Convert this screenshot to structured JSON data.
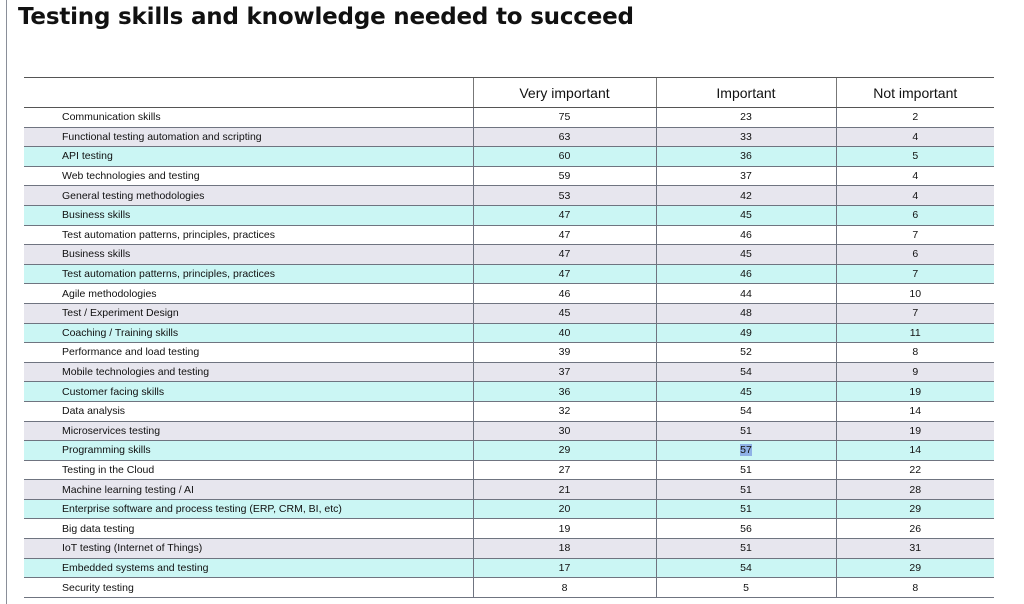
{
  "title": "Testing skills and knowledge needed to succeed",
  "columns": [
    "",
    "Very important",
    "Important",
    "Not important"
  ],
  "rows": [
    {
      "skill": "Communication skills",
      "very": "75",
      "important": "23",
      "not": "2",
      "shade": "white"
    },
    {
      "skill": "Functional testing automation and scripting",
      "very": "63",
      "important": "33",
      "not": "4",
      "shade": "gray"
    },
    {
      "skill": "API testing",
      "very": "60",
      "important": "36",
      "not": "5",
      "shade": "cyan"
    },
    {
      "skill": "Web technologies and testing",
      "very": "59",
      "important": "37",
      "not": "4",
      "shade": "white"
    },
    {
      "skill": "General testing methodologies",
      "very": "53",
      "important": "42",
      "not": "4",
      "shade": "gray"
    },
    {
      "skill": "Business skills",
      "very": "47",
      "important": "45",
      "not": "6",
      "shade": "cyan"
    },
    {
      "skill": "Test automation patterns, principles, practices",
      "very": "47",
      "important": "46",
      "not": "7",
      "shade": "white"
    },
    {
      "skill": "Business skills",
      "very": "47",
      "important": "45",
      "not": "6",
      "shade": "gray"
    },
    {
      "skill": "Test automation patterns, principles, practices",
      "very": "47",
      "important": "46",
      "not": "7",
      "shade": "cyan"
    },
    {
      "skill": "Agile methodologies",
      "very": "46",
      "important": "44",
      "not": "10",
      "shade": "white"
    },
    {
      "skill": "Test / Experiment Design",
      "very": "45",
      "important": "48",
      "not": "7",
      "shade": "gray"
    },
    {
      "skill": "Coaching / Training skills",
      "very": "40",
      "important": "49",
      "not": "11",
      "shade": "cyan"
    },
    {
      "skill": "Performance and load testing",
      "very": "39",
      "important": "52",
      "not": "8",
      "shade": "white"
    },
    {
      "skill": "Mobile technologies and testing",
      "very": "37",
      "important": "54",
      "not": "9",
      "shade": "gray"
    },
    {
      "skill": "Customer facing skills",
      "very": "36",
      "important": "45",
      "not": "19",
      "shade": "cyan"
    },
    {
      "skill": "Data analysis",
      "very": "32",
      "important": "54",
      "not": "14",
      "shade": "white"
    },
    {
      "skill": "Microservices testing",
      "very": "30",
      "important": "51",
      "not": "19",
      "shade": "gray"
    },
    {
      "skill": "Programming skills",
      "very": "29",
      "important": "57",
      "not": "14",
      "shade": "cyan",
      "highlight": "important"
    },
    {
      "skill": "Testing in the Cloud",
      "very": "27",
      "important": "51",
      "not": "22",
      "shade": "white"
    },
    {
      "skill": "Machine learning testing / AI",
      "very": "21",
      "important": "51",
      "not": "28",
      "shade": "gray"
    },
    {
      "skill": "Enterprise software and process testing (ERP, CRM, BI, etc)",
      "very": "20",
      "important": "51",
      "not": "29",
      "shade": "cyan"
    },
    {
      "skill": "Big data testing",
      "very": "19",
      "important": "56",
      "not": "26",
      "shade": "white"
    },
    {
      "skill": "IoT testing (Internet of Things)",
      "very": "18",
      "important": "51",
      "not": "31",
      "shade": "gray"
    },
    {
      "skill": "Embedded systems and testing",
      "very": "17",
      "important": "54",
      "not": "29",
      "shade": "cyan"
    },
    {
      "skill": "Security testing",
      "very": "8",
      "important": "5",
      "not": "8",
      "shade": "white"
    }
  ]
}
